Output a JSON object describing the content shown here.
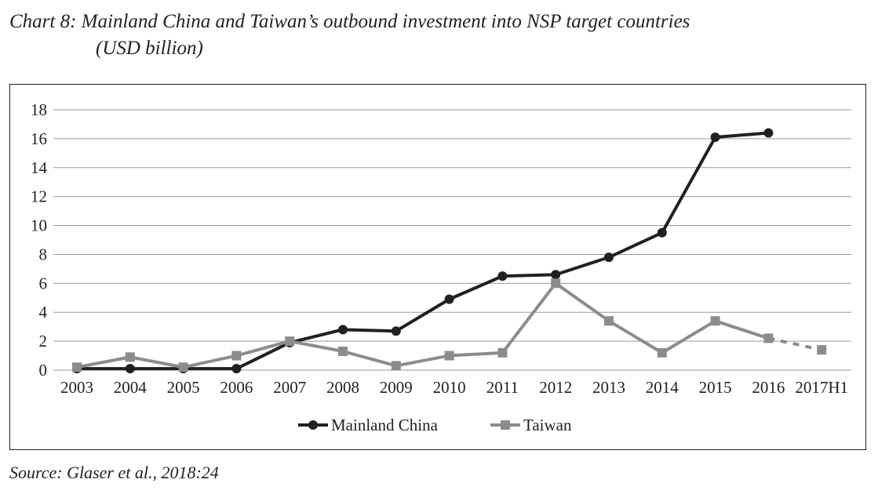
{
  "chart_data": {
    "type": "line",
    "title": "Chart 8: Mainland China and Taiwan’s outbound investment into NSP target countries",
    "subtitle": "(USD billion)",
    "source": "Source: Glaser et al., 2018:24",
    "xlabel": "",
    "ylabel": "",
    "ylim": [
      0,
      18
    ],
    "yticks": [
      0,
      2,
      4,
      6,
      8,
      10,
      12,
      14,
      16,
      18
    ],
    "grid": true,
    "legend_position": "bottom",
    "categories": [
      "2003",
      "2004",
      "2005",
      "2006",
      "2007",
      "2008",
      "2009",
      "2010",
      "2011",
      "2012",
      "2013",
      "2014",
      "2015",
      "2016",
      "2017H1"
    ],
    "series": [
      {
        "name": "Mainland China",
        "color": "#231f20",
        "marker": "circle",
        "values": [
          0.1,
          0.1,
          0.1,
          0.1,
          1.9,
          2.8,
          2.7,
          4.9,
          6.5,
          6.6,
          7.8,
          9.5,
          16.1,
          16.4,
          null
        ]
      },
      {
        "name": "Taiwan",
        "color": "#8c8c8c",
        "marker": "square",
        "values": [
          0.2,
          0.9,
          0.2,
          1.0,
          2.0,
          1.3,
          0.3,
          1.0,
          1.2,
          6.0,
          3.4,
          1.2,
          3.4,
          2.2,
          1.4
        ],
        "dashed_from_index": 13
      }
    ]
  }
}
